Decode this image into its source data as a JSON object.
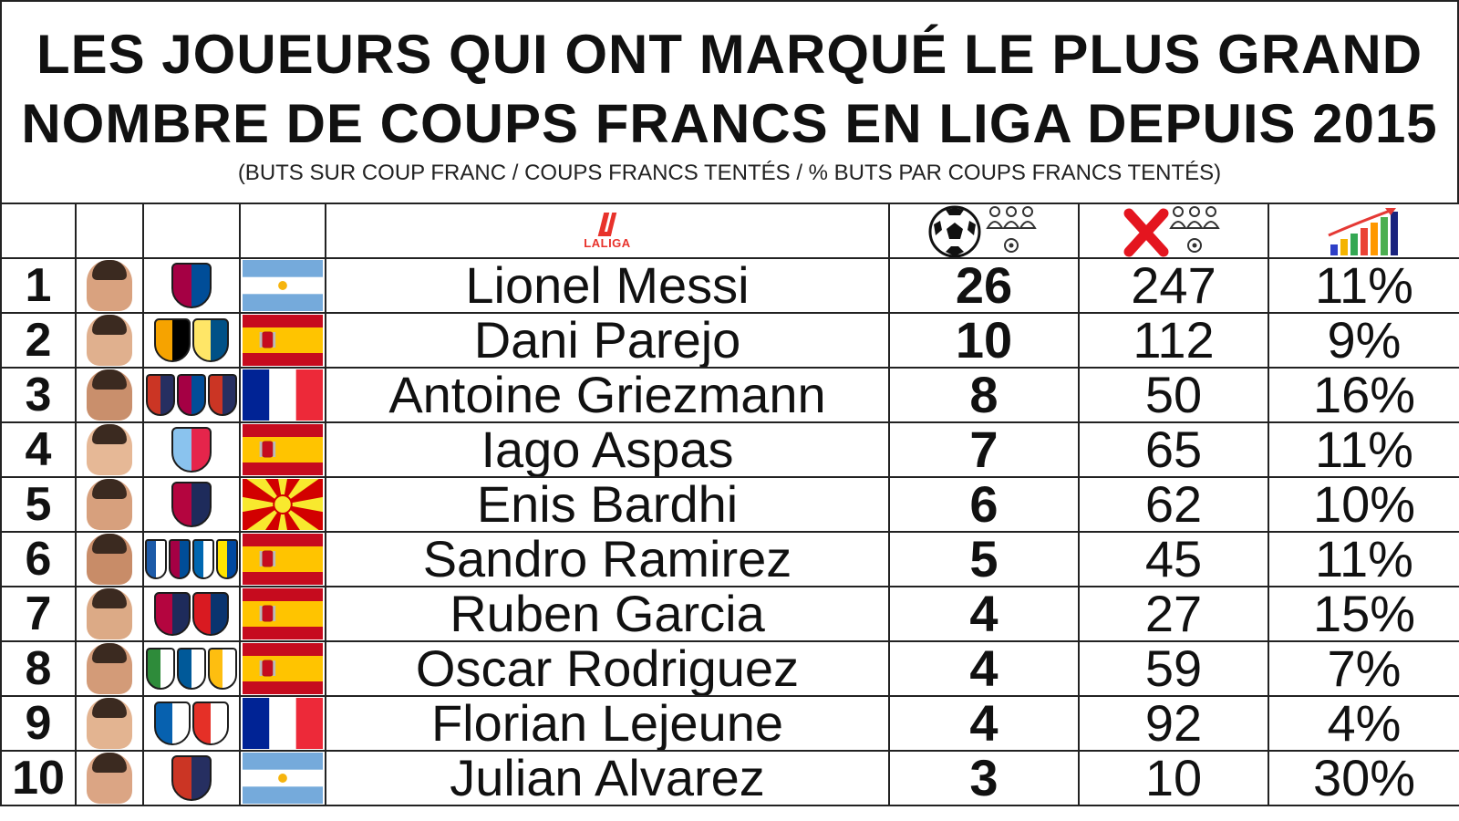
{
  "title": {
    "line1": "LES JOUEURS QUI ONT MARQUÉ LE PLUS GRAND",
    "line2": "NOMBRE DE COUPS FRANCS EN LIGA DEPUIS 2015",
    "subtitle": "(BUTS SUR COUP FRANC / COUPS FRANCS TENTÉS / % BUTS PAR COUPS FRANCS TENTÉS)"
  },
  "header": {
    "league_logo_text": "LALIGA",
    "icons": [
      "laliga-logo-icon",
      "football-wall-icon",
      "missed-free-kick-icon",
      "rising-bar-chart-icon"
    ]
  },
  "chart_data": {
    "type": "table",
    "title": "LES JOUEURS QUI ONT MARQUÉ LE PLUS GRAND NOMBRE DE COUPS FRANCS EN LIGA DEPUIS 2015",
    "subtitle": "(BUTS SUR COUP FRANC / COUPS FRANCS TENTÉS / % BUTS PAR COUPS FRANCS TENTÉS)",
    "columns": [
      "rank",
      "photo",
      "clubs",
      "flag",
      "player",
      "buts sur coup franc",
      "coups francs tentés",
      "% buts par coups francs tentés"
    ],
    "rows": [
      {
        "rank": "1",
        "player": "Lionel Messi",
        "goals": "26",
        "attempts": "247",
        "pct": "11%",
        "nation": "Argentina",
        "clubs": [
          {
            "name": "FC Barcelona",
            "colors": [
              "#a50044",
              "#004d98"
            ]
          }
        ]
      },
      {
        "rank": "2",
        "player": "Dani Parejo",
        "goals": "10",
        "attempts": "112",
        "pct": "9%",
        "nation": "Spain",
        "clubs": [
          {
            "name": "Valencia CF",
            "colors": [
              "#f6a300",
              "#000000"
            ]
          },
          {
            "name": "Villarreal CF",
            "colors": [
              "#ffe667",
              "#005187"
            ]
          }
        ]
      },
      {
        "rank": "3",
        "player": "Antoine Griezmann",
        "goals": "8",
        "attempts": "50",
        "pct": "16%",
        "nation": "France",
        "clubs": [
          {
            "name": "Atlético de Madrid",
            "colors": [
              "#cb3524",
              "#262f61"
            ]
          },
          {
            "name": "FC Barcelona",
            "colors": [
              "#a50044",
              "#004d98"
            ]
          },
          {
            "name": "Atlético de Madrid",
            "colors": [
              "#cb3524",
              "#262f61"
            ]
          }
        ]
      },
      {
        "rank": "4",
        "player": "Iago Aspas",
        "goals": "7",
        "attempts": "65",
        "pct": "11%",
        "nation": "Spain",
        "clubs": [
          {
            "name": "RC Celta",
            "colors": [
              "#8ac3ee",
              "#e5254b"
            ]
          }
        ]
      },
      {
        "rank": "5",
        "player": "Enis Bardhi",
        "goals": "6",
        "attempts": "62",
        "pct": "10%",
        "nation": "North Macedonia",
        "clubs": [
          {
            "name": "Levante UD",
            "colors": [
              "#b4053f",
              "#1e2b5b"
            ]
          }
        ]
      },
      {
        "rank": "6",
        "player": "Sandro Ramirez",
        "goals": "5",
        "attempts": "45",
        "pct": "11%",
        "nation": "Spain",
        "clubs": [
          {
            "name": "Málaga CF",
            "colors": [
              "#1c5aa8",
              "#ffffff"
            ]
          },
          {
            "name": "FC Barcelona",
            "colors": [
              "#a50044",
              "#004d98"
            ]
          },
          {
            "name": "Real Sociedad",
            "colors": [
              "#0067b1",
              "#ffffff"
            ]
          },
          {
            "name": "UD Las Palmas",
            "colors": [
              "#ffe400",
              "#0048a0"
            ]
          }
        ]
      },
      {
        "rank": "7",
        "player": "Ruben Garcia",
        "goals": "4",
        "attempts": "27",
        "pct": "15%",
        "nation": "Spain",
        "clubs": [
          {
            "name": "Levante UD",
            "colors": [
              "#b4053f",
              "#1e2b5b"
            ]
          },
          {
            "name": "CA Osasuna",
            "colors": [
              "#d91a21",
              "#0a346f"
            ]
          }
        ]
      },
      {
        "rank": "8",
        "player": "Oscar Rodriguez",
        "goals": "4",
        "attempts": "59",
        "pct": "7%",
        "nation": "Spain",
        "clubs": [
          {
            "name": "CD Leganés",
            "colors": [
              "#2e8b3a",
              "#ffffff"
            ]
          },
          {
            "name": "Getafe CF",
            "colors": [
              "#005999",
              "#ffffff"
            ]
          },
          {
            "name": "Real Madrid",
            "colors": [
              "#febe10",
              "#ffffff"
            ]
          }
        ]
      },
      {
        "rank": "9",
        "player": "Florian Lejeune",
        "goals": "4",
        "attempts": "92",
        "pct": "4%",
        "nation": "France",
        "clubs": [
          {
            "name": "Deportivo Alavés",
            "colors": [
              "#0761af",
              "#ffffff"
            ]
          },
          {
            "name": "Rayo Vallecano",
            "colors": [
              "#e53027",
              "#ffffff"
            ]
          }
        ]
      },
      {
        "rank": "10",
        "player": "Julian Alvarez",
        "goals": "3",
        "attempts": "10",
        "pct": "30%",
        "nation": "Argentina",
        "clubs": [
          {
            "name": "Atlético de Madrid",
            "colors": [
              "#cb3524",
              "#262f61"
            ]
          }
        ]
      }
    ]
  }
}
